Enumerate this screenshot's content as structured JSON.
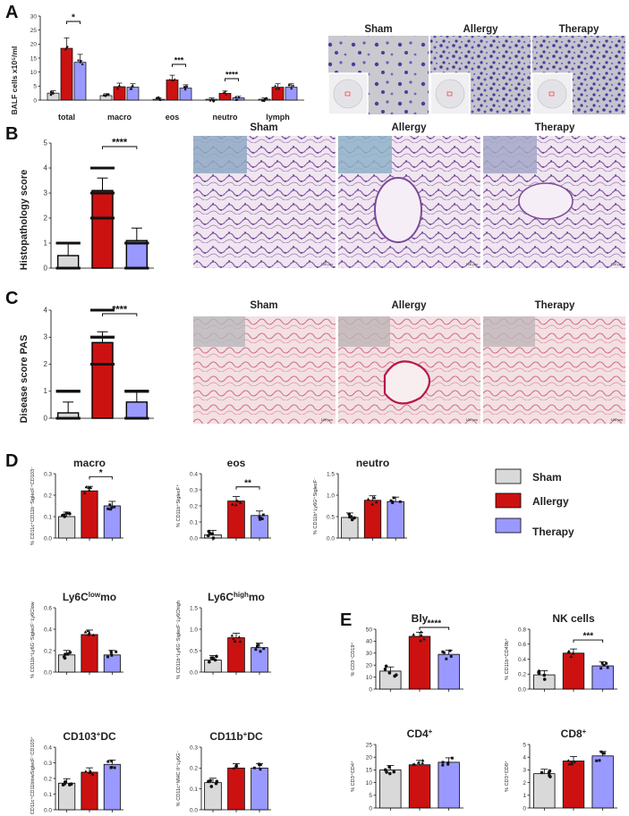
{
  "colors": {
    "sham": "#d9d9d9",
    "allergy": "#cc1111",
    "therapy": "#9999ff",
    "axis": "#000000",
    "micro_bg": "#c9c9cf",
    "he_bg": "#efe6f0",
    "pas_bg": "#f2e0e2"
  },
  "panels": {
    "A": {
      "letter": "A",
      "ylabel": "BALF cells x10⁵/ml",
      "yticks": [
        "0",
        "5",
        "10",
        "15",
        "20",
        "25",
        "30"
      ],
      "star": "*",
      "star2": "***",
      "star3": "****",
      "images": [
        {
          "label": "Sham"
        },
        {
          "label": "Allergy"
        },
        {
          "label": "Therapy"
        }
      ]
    },
    "B": {
      "letter": "B",
      "ylabel": "Histopathology score",
      "yticks": [
        "0",
        "1",
        "2",
        "3",
        "4",
        "5"
      ],
      "star": "****",
      "images": [
        {
          "label": "Sham",
          "scale": "100 µm"
        },
        {
          "label": "Allergy",
          "scale": "100 µm"
        },
        {
          "label": "Therapy",
          "scale": "100 µm"
        }
      ]
    },
    "C": {
      "letter": "C",
      "ylabel": "Disease score PAS",
      "yticks": [
        "0",
        "1",
        "2",
        "3",
        "4"
      ],
      "star": "****",
      "images": [
        {
          "label": "Sham",
          "scale": "100 µm"
        },
        {
          "label": "Allergy",
          "scale": "100 µm"
        },
        {
          "label": "Therapy",
          "scale": "100 µm"
        }
      ]
    },
    "D": {
      "letter": "D"
    },
    "E": {
      "letter": "E"
    }
  },
  "legend": {
    "items": [
      "Sham",
      "Allergy",
      "Therapy"
    ]
  },
  "chart_data": [
    {
      "panel": "A",
      "type": "bar",
      "categories": [
        "total",
        "macro",
        "eos",
        "neutro",
        "lymph"
      ],
      "series": [
        {
          "name": "Sham",
          "values": [
            2.5,
            1.6,
            0.3,
            0.3,
            0.3
          ]
        },
        {
          "name": "Allergy",
          "values": [
            18.5,
            4.8,
            7.2,
            2.4,
            4.6
          ]
        },
        {
          "name": "Therapy",
          "values": [
            13.5,
            4.6,
            4.3,
            0.8,
            4.6
          ]
        }
      ],
      "ylabel": "BALF cells x10⁵/ml",
      "ylim": [
        0,
        30
      ]
    },
    {
      "panel": "B",
      "type": "bar",
      "categories": [
        "Sham",
        "Allergy",
        "Therapy"
      ],
      "values": [
        0.5,
        3.1,
        1.1
      ],
      "ylabel": "Histopathology score",
      "ylim": [
        0,
        5
      ]
    },
    {
      "panel": "C",
      "type": "bar",
      "categories": [
        "Sham",
        "Allergy",
        "Therapy"
      ],
      "values": [
        0.2,
        2.8,
        0.6
      ],
      "ylabel": "Disease score PAS",
      "ylim": [
        0,
        4
      ]
    },
    {
      "panel": "D",
      "title": "macro",
      "ylabel": "% CD11c⁺CD11b⁻SiglecF⁺CD103⁻",
      "type": "bar",
      "categories": [
        "Sham",
        "Allergy",
        "Therapy"
      ],
      "values": [
        0.1,
        0.22,
        0.15
      ],
      "ylim": [
        0,
        0.3
      ],
      "yticks": [
        "0.0",
        "0.1",
        "0.2",
        "0.3"
      ],
      "star": "*"
    },
    {
      "panel": "D",
      "title": "eos",
      "ylabel": "% CD11b⁺SiglecF⁺",
      "type": "bar",
      "categories": [
        "Sham",
        "Allergy",
        "Therapy"
      ],
      "values": [
        0.02,
        0.23,
        0.14
      ],
      "ylim": [
        0,
        0.4
      ],
      "yticks": [
        "0.0",
        "0.1",
        "0.2",
        "0.3",
        "0.4"
      ],
      "star": "**"
    },
    {
      "panel": "D",
      "title": "neutro",
      "ylabel": "% CD11b⁺Ly6G⁺SiglecF⁻",
      "type": "bar",
      "categories": [
        "Sham",
        "Allergy",
        "Therapy"
      ],
      "values": [
        0.48,
        0.88,
        0.85
      ],
      "ylim": [
        0,
        1.5
      ],
      "yticks": [
        "0.0",
        "0.5",
        "1.0",
        "1.5"
      ]
    },
    {
      "panel": "D",
      "title": "Ly6Clowmo",
      "ylabel": "% CD11b⁺Ly6G⁻SiglecF⁻Ly6Clow",
      "type": "bar",
      "categories": [
        "Sham",
        "Allergy",
        "Therapy"
      ],
      "values": [
        0.16,
        0.35,
        0.16
      ],
      "ylim": [
        0,
        0.6
      ],
      "yticks": [
        "0.0",
        "0.2",
        "0.4",
        "0.6"
      ]
    },
    {
      "panel": "D",
      "title": "Ly6Chighmo",
      "ylabel": "% CD11b⁺Ly6G⁻SiglecF⁻Ly6Chigh",
      "type": "bar",
      "categories": [
        "Sham",
        "Allergy",
        "Therapy"
      ],
      "values": [
        0.28,
        0.8,
        0.57
      ],
      "ylim": [
        0,
        1.5
      ],
      "yticks": [
        "0.0",
        "0.5",
        "1.0",
        "1.5"
      ]
    },
    {
      "panel": "D",
      "title": "CD103+DC",
      "ylabel": "% CD11c⁺CD11blowSiglecF⁻CD103⁺",
      "type": "bar",
      "categories": [
        "Sham",
        "Allergy",
        "Therapy"
      ],
      "values": [
        0.17,
        0.24,
        0.29
      ],
      "ylim": [
        0,
        0.4
      ],
      "yticks": [
        "0.0",
        "0.1",
        "0.2",
        "0.3",
        "0.4"
      ]
    },
    {
      "panel": "D",
      "title": "CD11b+DC",
      "ylabel": "% CD11c⁺MHC II⁺Ly6G⁻",
      "type": "bar",
      "categories": [
        "Sham",
        "Allergy",
        "Therapy"
      ],
      "values": [
        0.13,
        0.2,
        0.2
      ],
      "ylim": [
        0,
        0.3
      ],
      "yticks": [
        "0.0",
        "0.1",
        "0.2",
        "0.3"
      ]
    },
    {
      "panel": "E",
      "title": "Bly",
      "ylabel": "% CD3⁻CD19⁺",
      "type": "bar",
      "categories": [
        "Sham",
        "Allergy",
        "Therapy"
      ],
      "values": [
        15,
        44,
        29
      ],
      "ylim": [
        0,
        50
      ],
      "yticks": [
        "0",
        "10",
        "20",
        "30",
        "40",
        "50"
      ],
      "star": "****"
    },
    {
      "panel": "E",
      "title": "NK cells",
      "ylabel": "% CD11b⁺CD49b⁺",
      "type": "bar",
      "categories": [
        "Sham",
        "Allergy",
        "Therapy"
      ],
      "values": [
        0.19,
        0.48,
        0.31
      ],
      "ylim": [
        0,
        0.8
      ],
      "yticks": [
        "0.0",
        "0.2",
        "0.4",
        "0.6",
        "0.8"
      ],
      "star": "***"
    },
    {
      "panel": "E",
      "title": "CD4+",
      "ylabel": "% CD3⁺CD4⁺",
      "type": "bar",
      "categories": [
        "Sham",
        "Allergy",
        "Therapy"
      ],
      "values": [
        15,
        17,
        18
      ],
      "ylim": [
        0,
        25
      ],
      "yticks": [
        "0",
        "5",
        "10",
        "15",
        "20",
        "25"
      ]
    },
    {
      "panel": "E",
      "title": "CD8+",
      "ylabel": "% CD3⁺CD8⁺",
      "type": "bar",
      "categories": [
        "Sham",
        "Allergy",
        "Therapy"
      ],
      "values": [
        2.7,
        3.7,
        4.1
      ],
      "ylim": [
        0,
        5
      ],
      "yticks": [
        "0",
        "1",
        "2",
        "3",
        "4",
        "5"
      ]
    }
  ]
}
